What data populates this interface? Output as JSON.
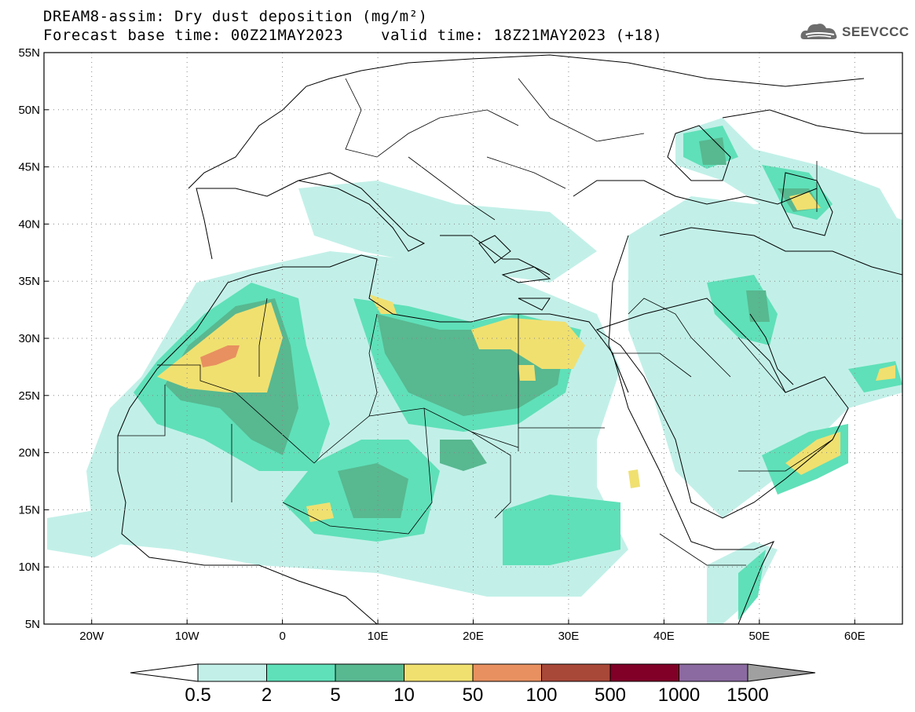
{
  "header": {
    "title_line1": "DREAM8-assim: Dry dust deposition (mg/m²)",
    "forecast_base": "Forecast base time: 00Z21MAY2023",
    "valid_time": "valid time: 18Z21MAY2023 (+18)",
    "logo_text": "SEEVCCC"
  },
  "map": {
    "lat_range": [
      5,
      55
    ],
    "lon_range": [
      -25,
      65
    ],
    "lat_ticks": [
      "55N",
      "50N",
      "45N",
      "40N",
      "35N",
      "30N",
      "25N",
      "20N",
      "15N",
      "10N",
      "5N"
    ],
    "lon_ticks": [
      "20W",
      "10W",
      "0",
      "10E",
      "20E",
      "30E",
      "40E",
      "50E",
      "60E"
    ],
    "gridlines": "dotted",
    "colors": {
      "ocean": "#ffffff",
      "coast": "#000000"
    }
  },
  "colorbar": {
    "labels": [
      "0.5",
      "2",
      "5",
      "10",
      "50",
      "100",
      "500",
      "1000",
      "1500"
    ],
    "colors": [
      "#c2f0e8",
      "#5fe0b8",
      "#58b890",
      "#f0e070",
      "#e89060",
      "#a84838",
      "#800028",
      "#8a6aa0"
    ],
    "low_arrow_color": "#ffffff",
    "high_arrow_color": "#a0a0a0"
  }
}
